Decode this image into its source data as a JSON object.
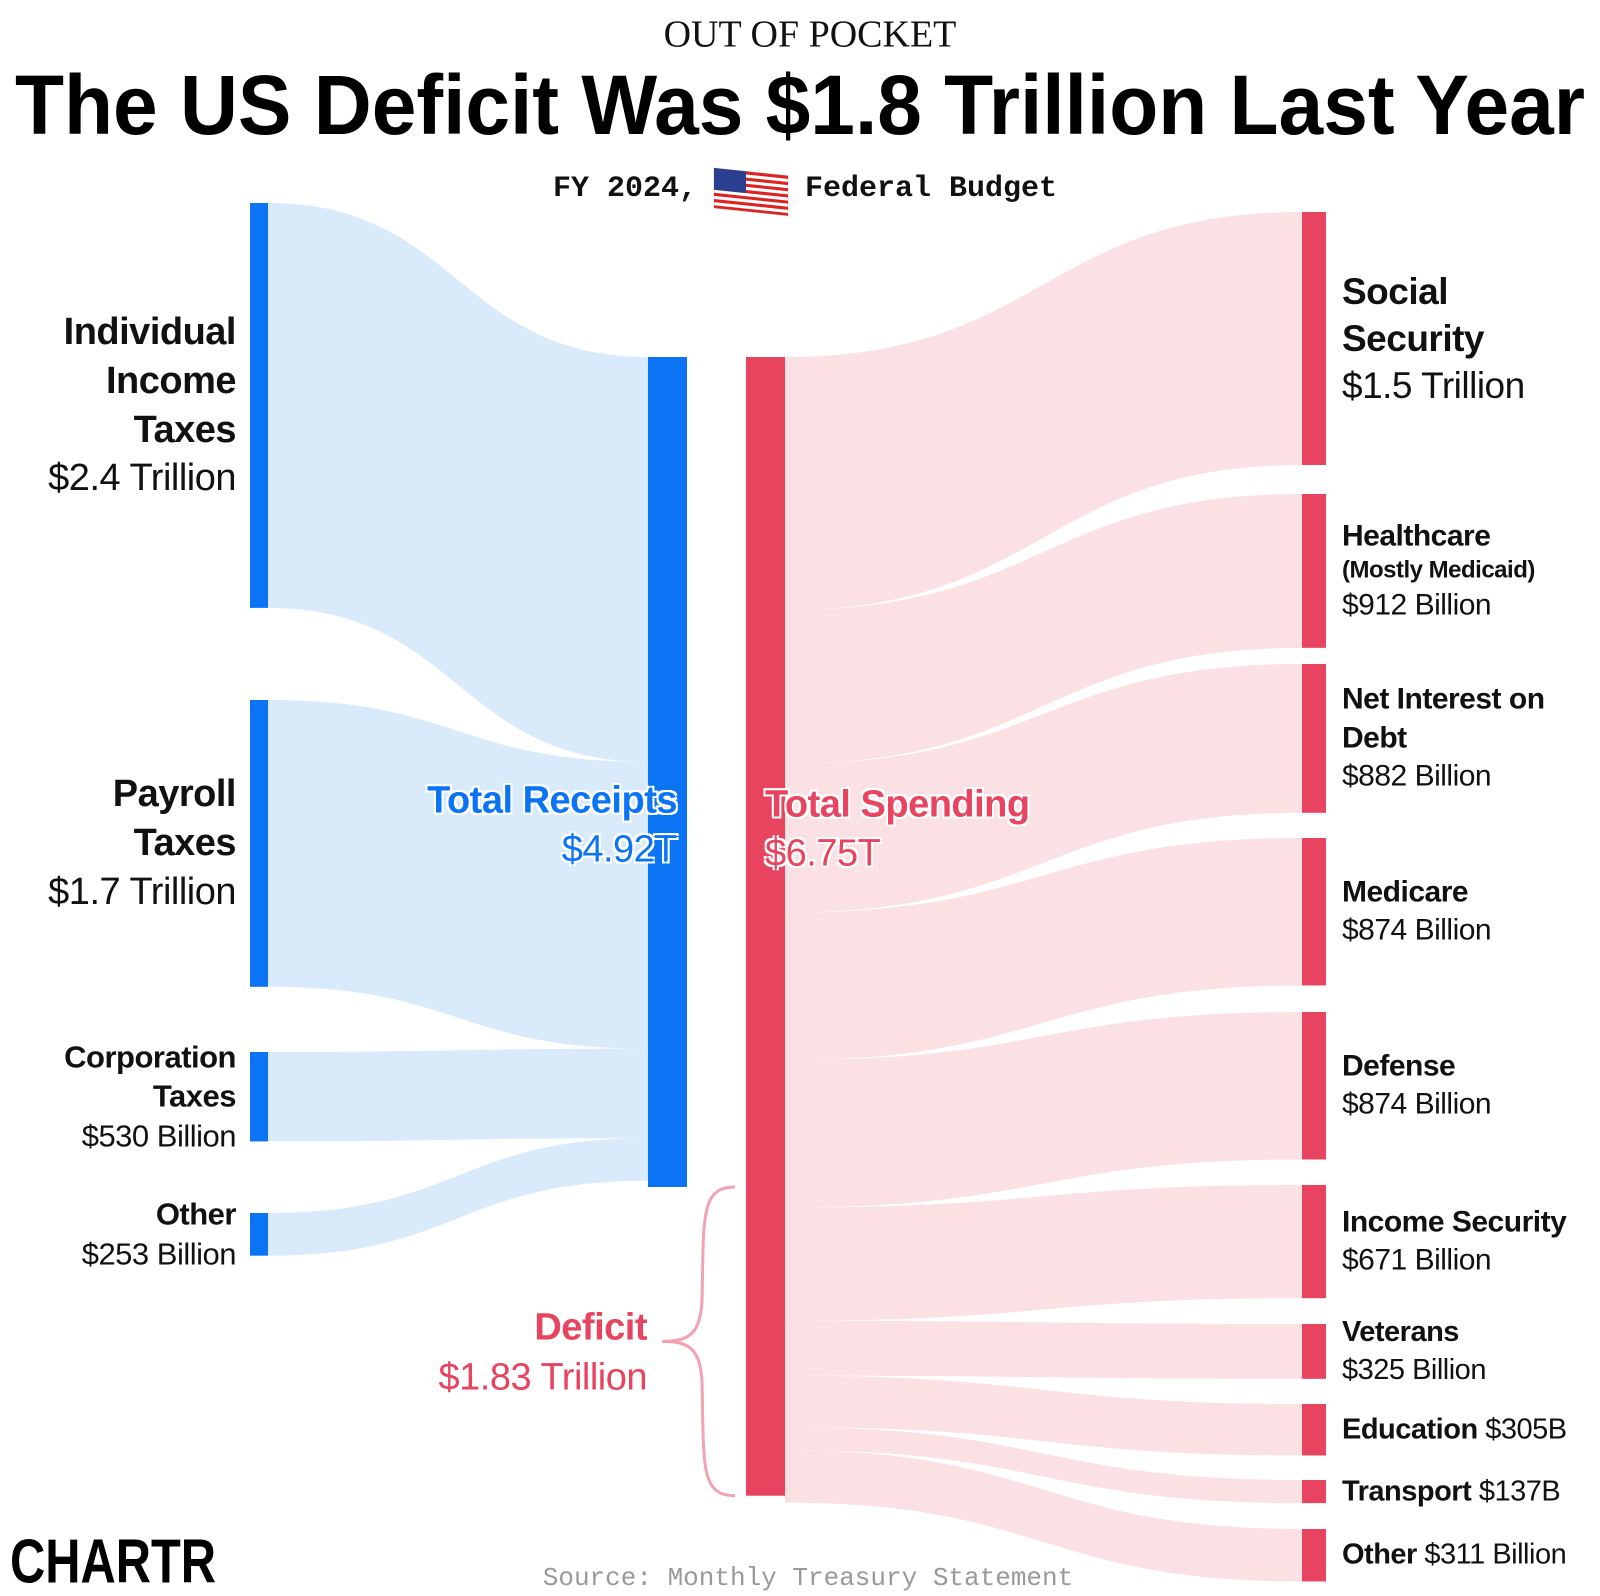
{
  "chart_data": {
    "type": "sankey",
    "kicker": "OUT OF POCKET",
    "title": "The US Deficit Was $1.8 Trillion Last Year",
    "subtitle_left": "FY 2024,",
    "subtitle_right": "Federal Budget",
    "receipts": {
      "name": "Total Receipts",
      "value": 4920,
      "value_label": "$4.92T",
      "color": "#0a74f5",
      "flow_color": "#d9eafb",
      "sources": [
        {
          "name": "Individual Income Taxes",
          "value": 2400,
          "value_label": "$2.4 Trillion"
        },
        {
          "name": "Payroll Taxes",
          "value": 1700,
          "value_label": "$1.7 Trillion"
        },
        {
          "name": "Corporation Taxes",
          "value": 530,
          "value_label": "$530 Billion"
        },
        {
          "name": "Other",
          "value": 253,
          "value_label": "$253 Billion"
        }
      ]
    },
    "spending": {
      "name": "Total Spending",
      "value": 6750,
      "value_label": "$6.75T",
      "color": "#e8435f",
      "flow_color": "#fbe0e4",
      "targets": [
        {
          "name": "Social Security",
          "value": 1500,
          "value_label": "$1.5 Trillion"
        },
        {
          "name": "Healthcare",
          "note": "(Mostly Medicaid)",
          "value": 912,
          "value_label": "$912 Billion"
        },
        {
          "name": "Net Interest on Debt",
          "value": 882,
          "value_label": "$882 Billion"
        },
        {
          "name": "Medicare",
          "value": 874,
          "value_label": "$874 Billion"
        },
        {
          "name": "Defense",
          "value": 874,
          "value_label": "$874 Billion"
        },
        {
          "name": "Income Security",
          "value": 671,
          "value_label": "$671 Billion"
        },
        {
          "name": "Veterans",
          "value": 325,
          "value_label": "$325 Billion"
        },
        {
          "name": "Education",
          "value": 305,
          "value_label": "$305B"
        },
        {
          "name": "Transport",
          "value": 137,
          "value_label": "$137B"
        },
        {
          "name": "Other",
          "value": 311,
          "value_label": "$311 Billion"
        }
      ]
    },
    "deficit": {
      "name": "Deficit",
      "value": 1830,
      "value_label": "$1.83 Trillion"
    },
    "source": "Source: Monthly Treasury Statement",
    "logo": "CHARTR"
  }
}
